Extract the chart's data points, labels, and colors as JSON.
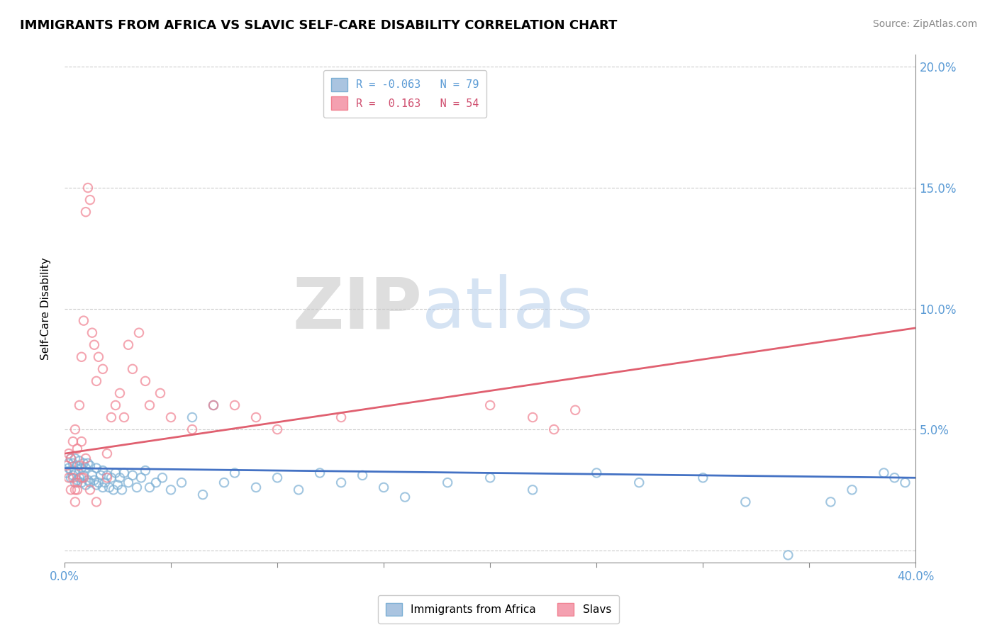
{
  "title": "IMMIGRANTS FROM AFRICA VS SLAVIC SELF-CARE DISABILITY CORRELATION CHART",
  "source": "Source: ZipAtlas.com",
  "ylabel": "Self-Care Disability",
  "xlim": [
    0.0,
    0.4
  ],
  "ylim": [
    -0.005,
    0.205
  ],
  "xticks": [
    0.0,
    0.05,
    0.1,
    0.15,
    0.2,
    0.25,
    0.3,
    0.35,
    0.4
  ],
  "xticklabels": [
    "0.0%",
    "",
    "",
    "",
    "",
    "",
    "",
    "",
    "40.0%"
  ],
  "yticks_right": [
    0.0,
    0.05,
    0.1,
    0.15,
    0.2
  ],
  "yticklabels_right": [
    "",
    "5.0%",
    "10.0%",
    "15.0%",
    "20.0%"
  ],
  "legend_label1": "R = -0.063   N = 79",
  "legend_label2": "R =  0.163   N = 54",
  "legend_color1": "#aac4e0",
  "legend_color2": "#f4a0b0",
  "watermark_zip": "ZIP",
  "watermark_atlas": "atlas",
  "series1_color": "#7bafd4",
  "series2_color": "#f08090",
  "trendline1_color": "#4472c4",
  "trendline2_color": "#e06070",
  "trendline1_x0": 0.0,
  "trendline1_y0": 0.034,
  "trendline1_x1": 0.4,
  "trendline1_y1": 0.03,
  "trendline2_x0": 0.0,
  "trendline2_y0": 0.04,
  "trendline2_x1": 0.4,
  "trendline2_y1": 0.092,
  "series1_x": [
    0.001,
    0.002,
    0.002,
    0.003,
    0.003,
    0.003,
    0.004,
    0.004,
    0.005,
    0.005,
    0.005,
    0.006,
    0.006,
    0.007,
    0.007,
    0.008,
    0.008,
    0.009,
    0.009,
    0.01,
    0.01,
    0.011,
    0.011,
    0.012,
    0.012,
    0.013,
    0.014,
    0.015,
    0.015,
    0.016,
    0.017,
    0.018,
    0.018,
    0.019,
    0.02,
    0.021,
    0.022,
    0.023,
    0.024,
    0.025,
    0.026,
    0.027,
    0.028,
    0.03,
    0.032,
    0.034,
    0.036,
    0.038,
    0.04,
    0.043,
    0.046,
    0.05,
    0.055,
    0.06,
    0.065,
    0.07,
    0.075,
    0.08,
    0.09,
    0.1,
    0.11,
    0.12,
    0.13,
    0.14,
    0.15,
    0.16,
    0.18,
    0.2,
    0.22,
    0.25,
    0.27,
    0.3,
    0.32,
    0.34,
    0.36,
    0.37,
    0.385,
    0.39,
    0.395
  ],
  "series1_y": [
    0.032,
    0.034,
    0.036,
    0.03,
    0.033,
    0.038,
    0.031,
    0.036,
    0.028,
    0.033,
    0.038,
    0.029,
    0.035,
    0.03,
    0.037,
    0.028,
    0.034,
    0.031,
    0.036,
    0.027,
    0.034,
    0.029,
    0.036,
    0.028,
    0.035,
    0.031,
    0.029,
    0.027,
    0.034,
    0.028,
    0.031,
    0.026,
    0.033,
    0.028,
    0.031,
    0.026,
    0.03,
    0.025,
    0.032,
    0.027,
    0.03,
    0.025,
    0.032,
    0.028,
    0.031,
    0.026,
    0.03,
    0.033,
    0.026,
    0.028,
    0.03,
    0.025,
    0.028,
    0.055,
    0.023,
    0.06,
    0.028,
    0.032,
    0.026,
    0.03,
    0.025,
    0.032,
    0.028,
    0.031,
    0.026,
    0.022,
    0.028,
    0.03,
    0.025,
    0.032,
    0.028,
    0.03,
    0.02,
    -0.002,
    0.02,
    0.025,
    0.032,
    0.03,
    0.028
  ],
  "series2_x": [
    0.001,
    0.002,
    0.002,
    0.003,
    0.003,
    0.004,
    0.004,
    0.005,
    0.005,
    0.006,
    0.006,
    0.007,
    0.007,
    0.008,
    0.008,
    0.009,
    0.009,
    0.01,
    0.01,
    0.011,
    0.012,
    0.013,
    0.014,
    0.015,
    0.016,
    0.018,
    0.02,
    0.022,
    0.024,
    0.026,
    0.028,
    0.03,
    0.032,
    0.035,
    0.038,
    0.04,
    0.045,
    0.05,
    0.06,
    0.07,
    0.08,
    0.09,
    0.1,
    0.13,
    0.2,
    0.22,
    0.23,
    0.24,
    0.005,
    0.006,
    0.008,
    0.012,
    0.015,
    0.02
  ],
  "series2_y": [
    0.035,
    0.03,
    0.04,
    0.038,
    0.025,
    0.045,
    0.03,
    0.05,
    0.025,
    0.042,
    0.028,
    0.06,
    0.035,
    0.08,
    0.045,
    0.095,
    0.03,
    0.14,
    0.038,
    0.15,
    0.145,
    0.09,
    0.085,
    0.07,
    0.08,
    0.075,
    0.04,
    0.055,
    0.06,
    0.065,
    0.055,
    0.085,
    0.075,
    0.09,
    0.07,
    0.06,
    0.065,
    0.055,
    0.05,
    0.06,
    0.06,
    0.055,
    0.05,
    0.055,
    0.06,
    0.055,
    0.05,
    0.058,
    0.02,
    0.025,
    0.03,
    0.025,
    0.02,
    0.03
  ]
}
